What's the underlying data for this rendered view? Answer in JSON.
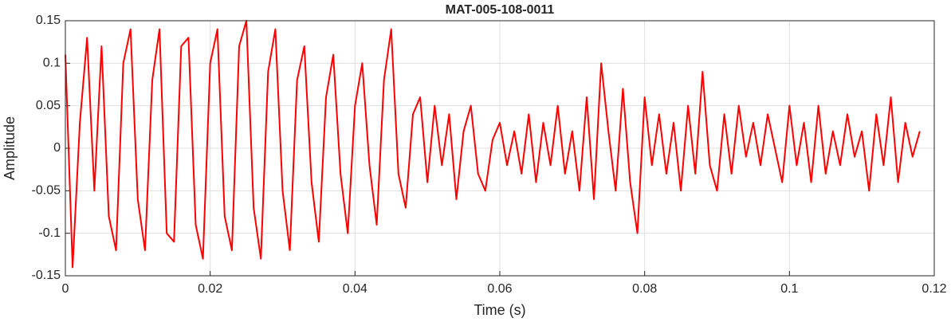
{
  "chart_data": {
    "type": "line",
    "title": "MAT-005-108-0011",
    "xlabel": "Time (s)",
    "ylabel": "Amplitude",
    "x": [
      0,
      0.001,
      0.002,
      0.003,
      0.004,
      0.005,
      0.006,
      0.007,
      0.008,
      0.009,
      0.01,
      0.011,
      0.012,
      0.013,
      0.014,
      0.015,
      0.016,
      0.017,
      0.018,
      0.019,
      0.02,
      0.021,
      0.022,
      0.023,
      0.024,
      0.025,
      0.026,
      0.027,
      0.028,
      0.029,
      0.03,
      0.031,
      0.032,
      0.033,
      0.034,
      0.035,
      0.036,
      0.037,
      0.038,
      0.039,
      0.04,
      0.041,
      0.042,
      0.043,
      0.044,
      0.045,
      0.046,
      0.047,
      0.048,
      0.049,
      0.05,
      0.051,
      0.052,
      0.053,
      0.054,
      0.055,
      0.056,
      0.057,
      0.058,
      0.059,
      0.06,
      0.061,
      0.062,
      0.063,
      0.064,
      0.065,
      0.066,
      0.067,
      0.068,
      0.069,
      0.07,
      0.071,
      0.072,
      0.073,
      0.074,
      0.075,
      0.076,
      0.077,
      0.078,
      0.079,
      0.08,
      0.081,
      0.082,
      0.083,
      0.084,
      0.085,
      0.086,
      0.087,
      0.088,
      0.089,
      0.09,
      0.091,
      0.092,
      0.093,
      0.094,
      0.095,
      0.096,
      0.097,
      0.098,
      0.099,
      0.1,
      0.101,
      0.102,
      0.103,
      0.104,
      0.105,
      0.106,
      0.107,
      0.108,
      0.109,
      0.11,
      0.111,
      0.112,
      0.113,
      0.114,
      0.115,
      0.116,
      0.117,
      0.118
    ],
    "values": [
      0.11,
      -0.14,
      0.03,
      0.13,
      -0.05,
      0.12,
      -0.08,
      -0.12,
      0.1,
      0.14,
      -0.06,
      -0.12,
      0.08,
      0.14,
      -0.1,
      -0.11,
      0.12,
      0.13,
      -0.09,
      -0.13,
      0.1,
      0.14,
      -0.08,
      -0.12,
      0.12,
      0.15,
      -0.07,
      -0.13,
      0.09,
      0.14,
      -0.05,
      -0.12,
      0.08,
      0.12,
      -0.04,
      -0.11,
      0.06,
      0.11,
      -0.03,
      -0.1,
      0.05,
      0.1,
      -0.02,
      -0.09,
      0.08,
      0.14,
      -0.03,
      -0.07,
      0.04,
      0.06,
      -0.04,
      0.05,
      -0.02,
      0.04,
      -0.06,
      0.02,
      0.05,
      -0.03,
      -0.05,
      0.01,
      0.03,
      -0.02,
      0.02,
      -0.03,
      0.04,
      -0.04,
      0.03,
      -0.02,
      0.05,
      -0.03,
      0.02,
      -0.05,
      0.06,
      -0.06,
      0.1,
      0.02,
      -0.05,
      0.07,
      -0.04,
      -0.1,
      0.06,
      -0.02,
      0.04,
      -0.03,
      0.03,
      -0.05,
      0.05,
      -0.03,
      0.09,
      -0.02,
      -0.05,
      0.04,
      -0.03,
      0.05,
      -0.01,
      0.03,
      -0.02,
      0.04,
      0,
      -0.04,
      0.05,
      -0.02,
      0.03,
      -0.04,
      0.05,
      -0.03,
      0.02,
      -0.02,
      0.04,
      -0.01,
      0.02,
      -0.05,
      0.04,
      -0.02,
      0.06,
      -0.04,
      0.03,
      -0.01,
      0.02
    ],
    "color": "#ff0000",
    "xlim": [
      0,
      0.12
    ],
    "xticks": [
      0,
      0.02,
      0.04,
      0.06,
      0.08,
      0.1,
      0.12
    ],
    "ylim": [
      -0.15,
      0.15
    ],
    "yticks": [
      -0.15,
      -0.1,
      -0.05,
      0,
      0.05,
      0.1,
      0.15
    ],
    "grid": true
  }
}
